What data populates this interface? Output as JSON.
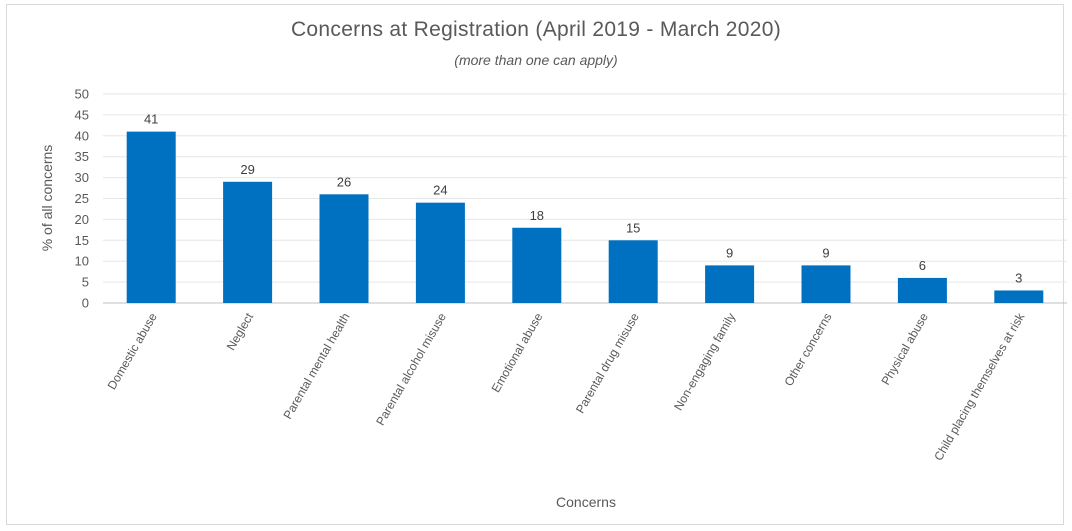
{
  "chart_data": {
    "type": "bar",
    "title": "Concerns  at Registration (April 2019 - March 2020)",
    "subtitle": "(more than one can apply)",
    "xlabel": "Concerns",
    "ylabel": "% of all concerns",
    "ylim": [
      0,
      50
    ],
    "yticks": [
      0,
      5,
      10,
      15,
      20,
      25,
      30,
      35,
      40,
      45,
      50
    ],
    "grid": true,
    "legend": "none",
    "bar_color": "#0070C0",
    "categories": [
      "Domestic abuse",
      "Neglect",
      "Parental mental health",
      "Parental alcohol misuse",
      "Emotional abuse",
      "Parental drug misuse",
      "Non-engaging family",
      "Other concerns",
      "Physical abuse",
      "Child placing themselves at risk"
    ],
    "values": [
      41,
      29,
      26,
      24,
      18,
      15,
      9,
      9,
      6,
      3
    ]
  }
}
